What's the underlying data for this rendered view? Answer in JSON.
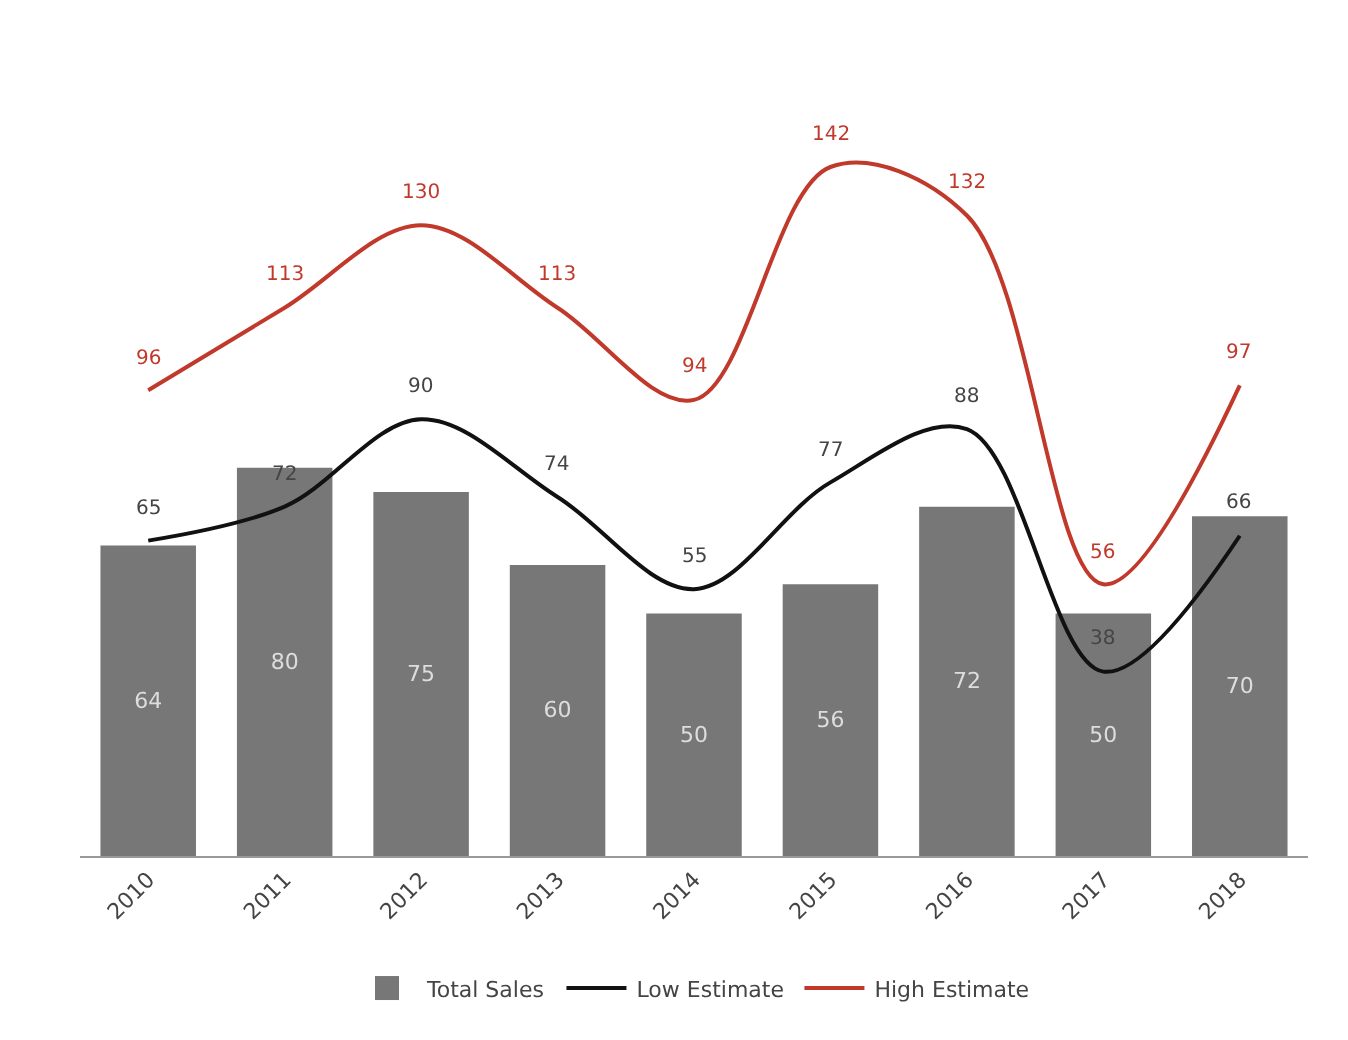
{
  "chart_data": {
    "type": "bar",
    "categories": [
      "2010",
      "2011",
      "2012",
      "2013",
      "2014",
      "2015",
      "2016",
      "2017",
      "2018"
    ],
    "series": [
      {
        "name": "Total Sales",
        "color": "#767776",
        "values": [
          64,
          80,
          75,
          60,
          50,
          56,
          72,
          50,
          70
        ]
      },
      {
        "name": "Low Estimate",
        "type": "line",
        "color": "#111111",
        "values": [
          65,
          72,
          90,
          74,
          55,
          77,
          88,
          38,
          66
        ]
      },
      {
        "name": "High Estimate",
        "type": "line",
        "color": "#c0392b",
        "values": [
          96,
          113,
          130,
          113,
          94,
          142,
          132,
          56,
          97
        ]
      }
    ],
    "data_labels": true,
    "legend": "bottom",
    "grid": false,
    "marker": "none",
    "line_style": "solid"
  }
}
